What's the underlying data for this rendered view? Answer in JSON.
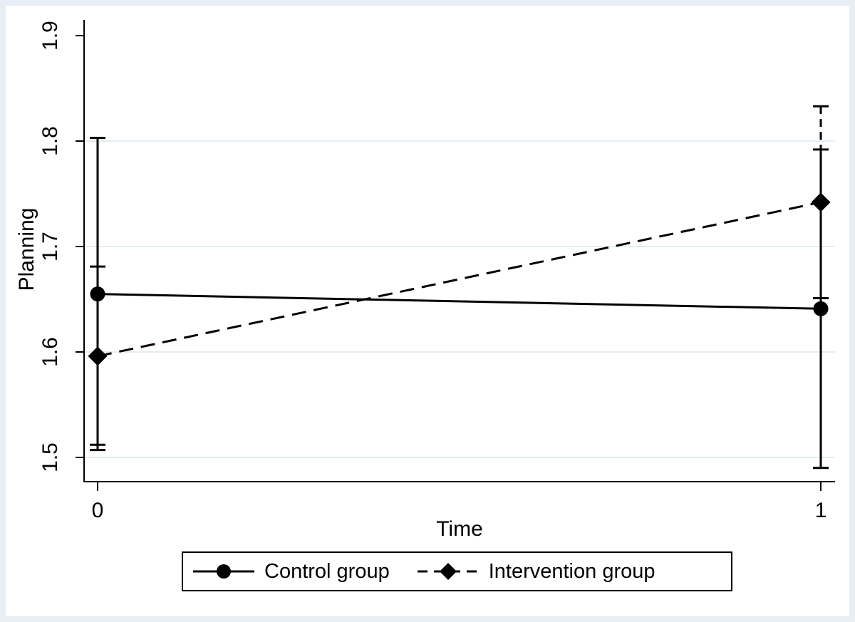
{
  "figure": {
    "kind": "stata-interaction-plot"
  },
  "chart_data": {
    "type": "line",
    "title": "",
    "xlabel": "Time",
    "ylabel": "Planning",
    "x_tick_values": [
      0,
      1
    ],
    "x_tick_labels": [
      "0",
      "1"
    ],
    "y_tick_values": [
      1.5,
      1.6,
      1.7,
      1.8,
      1.9
    ],
    "y_tick_labels": [
      "1.5",
      "1.6",
      "1.7",
      "1.8",
      "1.9"
    ],
    "xlim": [
      -0.019,
      1.02
    ],
    "ylim": [
      1.477,
      1.915
    ],
    "grid": true,
    "grid_y_values": [
      1.5,
      1.6,
      1.7,
      1.8
    ],
    "legend_position": "bottom",
    "series": [
      {
        "name": "Control group",
        "marker": "circle",
        "line_style": "solid",
        "x": [
          0,
          1
        ],
        "y": [
          1.655,
          1.641
        ],
        "ci_lower": [
          1.507,
          1.49
        ],
        "ci_upper": [
          1.803,
          1.792
        ]
      },
      {
        "name": "Intervention group",
        "marker": "diamond",
        "line_style": "dashed",
        "x": [
          0,
          1
        ],
        "y": [
          1.596,
          1.742
        ],
        "ci_lower": [
          1.512,
          1.651
        ],
        "ci_upper": [
          1.681,
          1.833
        ]
      }
    ]
  },
  "colors": {
    "foreground": "#000000",
    "background": "#ffffff",
    "frame": "#e7eff4",
    "gridline": "#e3edf2"
  }
}
